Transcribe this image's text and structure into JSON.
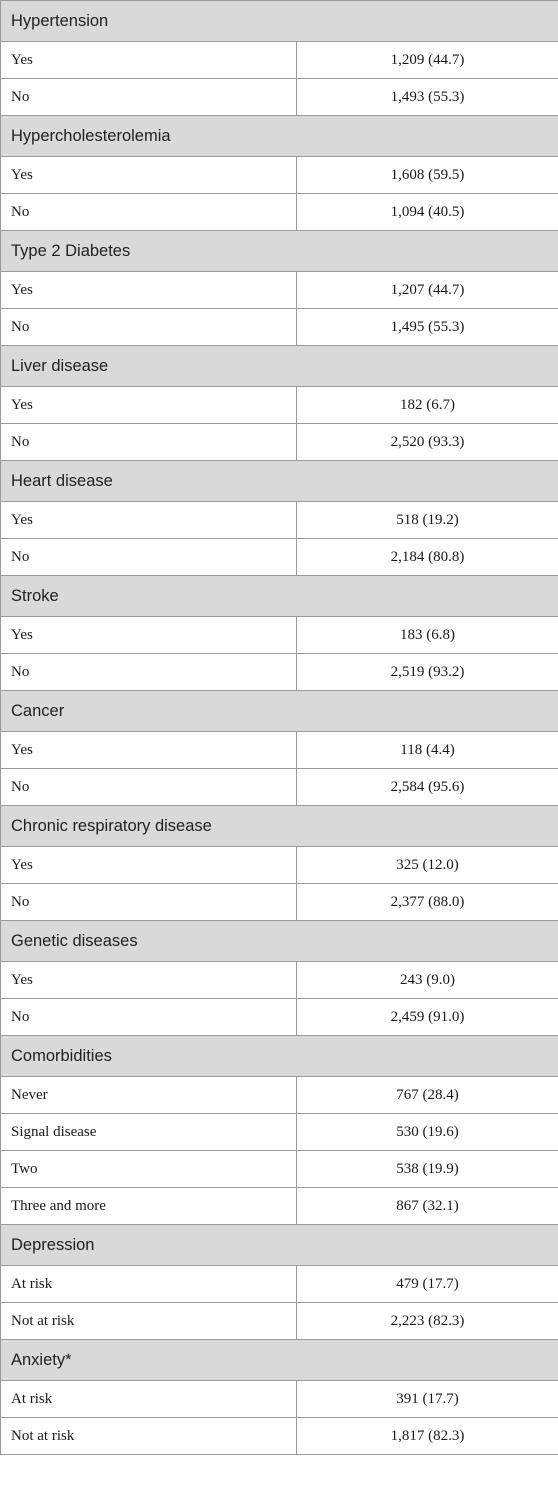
{
  "sections": [
    {
      "title": "Hypertension",
      "rows": [
        {
          "label": "Yes",
          "value": "1,209 (44.7)"
        },
        {
          "label": "No",
          "value": "1,493 (55.3)"
        }
      ]
    },
    {
      "title": "Hypercholesterolemia",
      "rows": [
        {
          "label": "Yes",
          "value": "1,608 (59.5)"
        },
        {
          "label": "No",
          "value": "1,094 (40.5)"
        }
      ]
    },
    {
      "title": "Type 2 Diabetes",
      "rows": [
        {
          "label": "Yes",
          "value": "1,207 (44.7)"
        },
        {
          "label": "No",
          "value": "1,495 (55.3)"
        }
      ]
    },
    {
      "title": "Liver disease",
      "rows": [
        {
          "label": "Yes",
          "value": "182 (6.7)"
        },
        {
          "label": "No",
          "value": "2,520 (93.3)"
        }
      ]
    },
    {
      "title": "Heart disease",
      "rows": [
        {
          "label": "Yes",
          "value": "518 (19.2)"
        },
        {
          "label": "No",
          "value": "2,184 (80.8)"
        }
      ]
    },
    {
      "title": "Stroke",
      "rows": [
        {
          "label": "Yes",
          "value": "183 (6.8)"
        },
        {
          "label": "No",
          "value": "2,519 (93.2)"
        }
      ]
    },
    {
      "title": "Cancer",
      "rows": [
        {
          "label": "Yes",
          "value": "118 (4.4)"
        },
        {
          "label": "No",
          "value": "2,584 (95.6)"
        }
      ]
    },
    {
      "title": "Chronic respiratory disease",
      "rows": [
        {
          "label": "Yes",
          "value": "325 (12.0)"
        },
        {
          "label": "No",
          "value": "2,377 (88.0)"
        }
      ]
    },
    {
      "title": "Genetic diseases",
      "rows": [
        {
          "label": "Yes",
          "value": "243 (9.0)"
        },
        {
          "label": "No",
          "value": "2,459 (91.0)"
        }
      ]
    },
    {
      "title": "Comorbidities",
      "rows": [
        {
          "label": "Never",
          "value": "767 (28.4)"
        },
        {
          "label": "Signal disease",
          "value": "530 (19.6)"
        },
        {
          "label": "Two",
          "value": "538 (19.9)"
        },
        {
          "label": "Three and more",
          "value": "867 (32.1)"
        }
      ]
    },
    {
      "title": "Depression",
      "rows": [
        {
          "label": "At risk",
          "value": "479 (17.7)"
        },
        {
          "label": "Not at risk",
          "value": "2,223 (82.3)"
        }
      ]
    },
    {
      "title": "Anxiety*",
      "rows": [
        {
          "label": "At risk",
          "value": "391 (17.7)"
        },
        {
          "label": "Not at risk",
          "value": "1,817 (82.3)"
        }
      ]
    }
  ]
}
